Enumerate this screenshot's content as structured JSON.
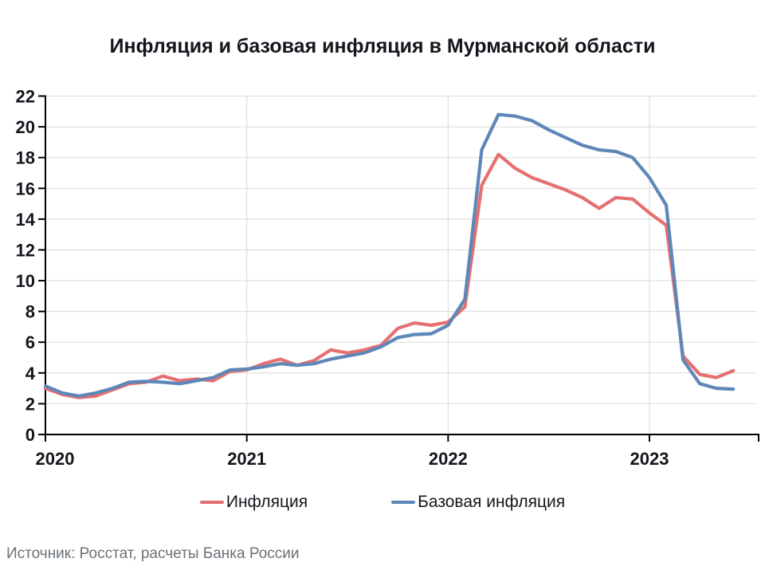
{
  "title": "Инфляция и базовая инфляция в Мурманской области",
  "source": "Источник: Росстат, расчеты Банка России",
  "legend": [
    {
      "label": "Инфляция",
      "color": "#E57070"
    },
    {
      "label": "Базовая инфляция",
      "color": "#5E87B8"
    }
  ],
  "colors": {
    "grid": "#D9D9D9",
    "axis": "#000000",
    "tick_label": "#15151d",
    "inflation_line": "#E57070",
    "core_inflation_line": "#5E87B8"
  },
  "chart_data": {
    "type": "line",
    "title": "Инфляция и базовая инфляция в Мурманской области",
    "xlabel": "",
    "ylabel": "",
    "ylim": [
      0,
      22
    ],
    "y_ticks": [
      0,
      2,
      4,
      6,
      8,
      10,
      12,
      14,
      16,
      18,
      20,
      22
    ],
    "x_ticks": [
      "2020",
      "2021",
      "2022",
      "2023"
    ],
    "grid": true,
    "legend_position": "bottom",
    "x": [
      "2020-01",
      "2020-02",
      "2020-03",
      "2020-04",
      "2020-05",
      "2020-06",
      "2020-07",
      "2020-08",
      "2020-09",
      "2020-10",
      "2020-11",
      "2020-12",
      "2021-01",
      "2021-02",
      "2021-03",
      "2021-04",
      "2021-05",
      "2021-06",
      "2021-07",
      "2021-08",
      "2021-09",
      "2021-10",
      "2021-11",
      "2021-12",
      "2022-01",
      "2022-02",
      "2022-03",
      "2022-04",
      "2022-05",
      "2022-06",
      "2022-07",
      "2022-08",
      "2022-09",
      "2022-10",
      "2022-11",
      "2022-12",
      "2023-01",
      "2023-02",
      "2023-03",
      "2023-04",
      "2023-05",
      "2023-06"
    ],
    "series": [
      {
        "name": "Инфляция",
        "color": "#E57070",
        "values": [
          3.0,
          2.6,
          2.4,
          2.5,
          2.9,
          3.3,
          3.4,
          3.8,
          3.5,
          3.6,
          3.5,
          4.1,
          4.2,
          4.6,
          4.9,
          4.5,
          4.8,
          5.5,
          5.3,
          5.5,
          5.8,
          6.9,
          7.25,
          7.1,
          7.3,
          8.3,
          16.2,
          18.2,
          17.3,
          16.7,
          16.3,
          15.9,
          15.4,
          14.7,
          15.4,
          15.3,
          14.4,
          13.6,
          5.1,
          3.9,
          3.7,
          4.15
        ]
      },
      {
        "name": "Базовая инфляция",
        "color": "#5E87B8",
        "values": [
          3.15,
          2.7,
          2.5,
          2.7,
          3.0,
          3.4,
          3.45,
          3.4,
          3.3,
          3.5,
          3.7,
          4.2,
          4.25,
          4.4,
          4.6,
          4.5,
          4.6,
          4.9,
          5.1,
          5.3,
          5.7,
          6.3,
          6.5,
          6.55,
          7.1,
          8.8,
          18.5,
          20.8,
          20.7,
          20.4,
          19.8,
          19.3,
          18.8,
          18.5,
          18.4,
          18.0,
          16.7,
          14.9,
          4.85,
          3.3,
          3.0,
          2.95
        ]
      }
    ]
  }
}
